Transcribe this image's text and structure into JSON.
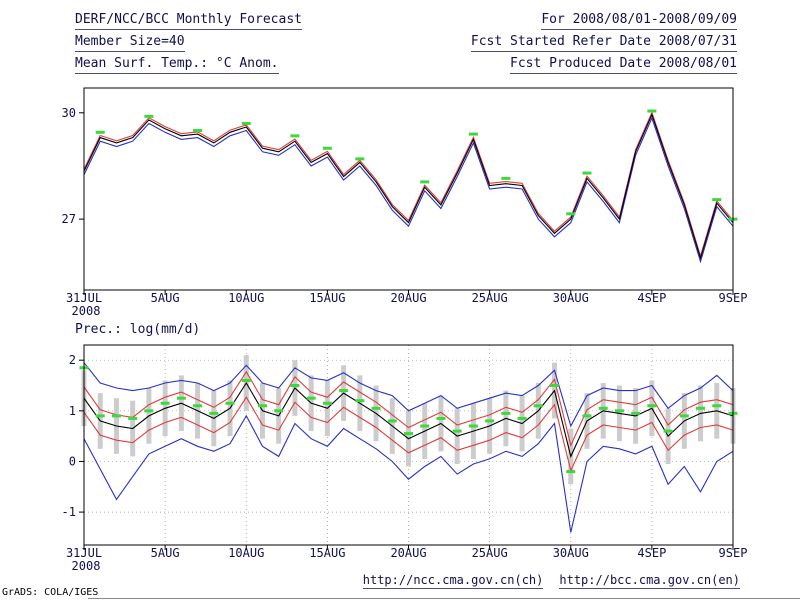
{
  "header": {
    "left": [
      "DERF/NCC/BCC Monthly Forecast",
      "Member Size=40",
      "Mean Surf. Temp.: °C Anom."
    ],
    "right": [
      "For 2008/08/01-2008/09/09",
      "Fcst Started Refer Date 2008/07/31",
      "Fcst Produced Date 2008/08/01"
    ]
  },
  "footer": {
    "url_ch": "http://ncc.cma.gov.cn(ch)",
    "url_en": "http://bcc.cma.gov.cn(en)",
    "credit": "GrADS: COLA/IGES"
  },
  "colors": {
    "text": "#101050",
    "grid": "#9a9a9a",
    "frame": "#000000",
    "line_black": "#000000",
    "line_red": "#e03c3c",
    "line_blue": "#2830c8",
    "marker_green": "#3cd83c",
    "bar_gray": "#cccccc"
  },
  "chart_data": [
    {
      "id": "temp",
      "type": "line",
      "title": "Mean Surf. Temp.: °C Anom.",
      "ylim": [
        25.0,
        30.7
      ],
      "y_ticks": [
        27,
        30
      ],
      "x_tick_indices": [
        0,
        5,
        10,
        15,
        20,
        25,
        30,
        35,
        40
      ],
      "x_ticklabels": [
        "31JUL",
        "5AUG",
        "10AUG",
        "15AUG",
        "20AUG",
        "25AUG",
        "30AUG",
        "4SEP",
        "9SEP"
      ],
      "x_sub_label": "2008",
      "n_points": 41,
      "grid": false,
      "series": [
        {
          "name": "model-blue",
          "color": "#2830c8",
          "values": [
            28.25,
            29.2,
            29.05,
            29.2,
            29.7,
            29.45,
            29.25,
            29.3,
            29.05,
            29.35,
            29.5,
            28.9,
            28.8,
            29.1,
            28.5,
            28.75,
            28.1,
            28.5,
            27.95,
            27.25,
            26.8,
            27.8,
            27.3,
            28.2,
            29.15,
            27.85,
            27.9,
            27.85,
            27.0,
            26.5,
            26.9,
            28.05,
            27.5,
            26.9,
            28.8,
            29.85,
            28.5,
            27.3,
            25.8,
            27.35,
            26.8
          ]
        },
        {
          "name": "model-red",
          "color": "#e03c3c",
          "values": [
            28.41,
            29.36,
            29.21,
            29.36,
            29.86,
            29.61,
            29.41,
            29.46,
            29.21,
            29.51,
            29.66,
            29.06,
            28.96,
            29.26,
            28.66,
            28.91,
            28.26,
            28.66,
            28.11,
            27.41,
            26.96,
            27.96,
            27.46,
            28.36,
            29.31,
            28.01,
            28.06,
            28.01,
            27.16,
            26.66,
            27.06,
            28.21,
            27.66,
            27.06,
            28.96,
            30.01,
            28.66,
            27.46,
            25.96,
            27.51,
            26.96
          ]
        },
        {
          "name": "ensemble-mean-black",
          "color": "#000000",
          "values": [
            28.35,
            29.3,
            29.15,
            29.3,
            29.8,
            29.55,
            29.35,
            29.4,
            29.15,
            29.45,
            29.6,
            29.0,
            28.9,
            29.2,
            28.6,
            28.85,
            28.2,
            28.6,
            28.05,
            27.35,
            26.9,
            27.9,
            27.4,
            28.3,
            29.25,
            27.95,
            28.0,
            27.95,
            27.1,
            26.6,
            27.0,
            28.15,
            27.6,
            27.0,
            28.9,
            29.95,
            28.6,
            27.4,
            25.9,
            27.45,
            26.9
          ]
        }
      ],
      "markers": {
        "name": "obs-green",
        "color": "#3cd83c",
        "values": [
          null,
          29.45,
          null,
          null,
          29.9,
          null,
          null,
          29.5,
          null,
          null,
          29.7,
          null,
          null,
          29.35,
          null,
          29.0,
          null,
          28.7,
          null,
          null,
          null,
          28.05,
          null,
          null,
          29.4,
          null,
          28.15,
          null,
          null,
          null,
          27.15,
          28.3,
          null,
          null,
          null,
          30.05,
          null,
          null,
          null,
          27.55,
          27.0
        ]
      }
    },
    {
      "id": "prec",
      "type": "line",
      "title": "Prec.: log(mm/d)",
      "ylim": [
        -1.65,
        2.3
      ],
      "y_ticks": [
        -1,
        0,
        1,
        2
      ],
      "x_tick_indices": [
        0,
        5,
        10,
        15,
        20,
        25,
        30,
        35,
        40
      ],
      "x_ticklabels": [
        "31JUL",
        "5AUG",
        "10AUG",
        "15AUG",
        "20AUG",
        "25AUG",
        "30AUG",
        "4SEP",
        "9SEP"
      ],
      "x_sub_label": "2008",
      "n_points": 41,
      "grid": true,
      "bars": {
        "around": "ensemble-mean-black",
        "halfspan": 0.55,
        "color": "#cccccc"
      },
      "series": [
        {
          "name": "envelope-max-blue",
          "color": "#2830c8",
          "values": [
            1.95,
            1.55,
            1.45,
            1.4,
            1.45,
            1.55,
            1.6,
            1.55,
            1.4,
            1.55,
            1.9,
            1.55,
            1.45,
            1.85,
            1.65,
            1.6,
            1.75,
            1.55,
            1.4,
            1.3,
            1.0,
            1.15,
            1.3,
            1.05,
            1.15,
            1.25,
            1.35,
            1.3,
            1.5,
            1.8,
            0.7,
            1.3,
            1.45,
            1.4,
            1.4,
            1.5,
            1.05,
            1.3,
            1.45,
            1.7,
            1.4
          ]
        },
        {
          "name": "envelope-min-blue",
          "color": "#2830c8",
          "values": [
            0.45,
            -0.15,
            -0.75,
            -0.3,
            0.15,
            0.3,
            0.45,
            0.3,
            0.2,
            0.35,
            0.9,
            0.3,
            0.1,
            0.75,
            0.45,
            0.3,
            0.65,
            0.45,
            0.25,
            0.0,
            -0.35,
            -0.1,
            0.1,
            -0.25,
            -0.05,
            0.05,
            0.2,
            0.1,
            0.35,
            0.75,
            -1.4,
            0.0,
            0.3,
            0.25,
            0.15,
            0.3,
            -0.45,
            -0.1,
            -0.6,
            0.0,
            0.2
          ]
        },
        {
          "name": "quartile-upper-red",
          "color": "#e03c3c",
          "values": [
            1.47,
            1.02,
            0.92,
            0.87,
            1.12,
            1.27,
            1.37,
            1.22,
            1.07,
            1.27,
            1.77,
            1.22,
            1.12,
            1.67,
            1.37,
            1.27,
            1.57,
            1.37,
            1.17,
            0.92,
            0.67,
            0.82,
            0.97,
            0.72,
            0.82,
            0.92,
            1.07,
            0.97,
            1.22,
            1.62,
            0.32,
            1.02,
            1.22,
            1.17,
            1.12,
            1.27,
            0.72,
            1.02,
            1.17,
            1.22,
            1.12
          ]
        },
        {
          "name": "quartile-lower-red",
          "color": "#e03c3c",
          "values": [
            0.97,
            0.52,
            0.42,
            0.37,
            0.62,
            0.77,
            0.87,
            0.72,
            0.57,
            0.77,
            1.27,
            0.72,
            0.62,
            1.17,
            0.87,
            0.77,
            1.07,
            0.87,
            0.67,
            0.42,
            0.17,
            0.32,
            0.47,
            0.22,
            0.32,
            0.42,
            0.57,
            0.47,
            0.72,
            1.12,
            -0.18,
            0.52,
            0.72,
            0.67,
            0.62,
            0.77,
            0.22,
            0.52,
            0.67,
            0.72,
            0.62
          ]
        },
        {
          "name": "ensemble-mean-black",
          "color": "#000000",
          "values": [
            1.25,
            0.8,
            0.7,
            0.65,
            0.9,
            1.05,
            1.15,
            1.0,
            0.85,
            1.05,
            1.55,
            1.0,
            0.9,
            1.45,
            1.15,
            1.05,
            1.35,
            1.15,
            0.95,
            0.7,
            0.45,
            0.6,
            0.75,
            0.5,
            0.6,
            0.7,
            0.85,
            0.75,
            1.0,
            1.4,
            0.1,
            0.8,
            1.0,
            0.95,
            0.9,
            1.05,
            0.5,
            0.8,
            0.95,
            1.0,
            0.9
          ]
        }
      ],
      "markers": {
        "name": "obs-green",
        "color": "#3cd83c",
        "values": [
          1.85,
          0.9,
          0.9,
          0.85,
          1.0,
          1.15,
          1.25,
          1.1,
          0.95,
          1.15,
          1.6,
          1.1,
          1.0,
          1.5,
          1.25,
          1.15,
          1.4,
          1.2,
          1.05,
          0.8,
          0.55,
          0.7,
          0.85,
          0.6,
          0.7,
          0.8,
          0.95,
          0.85,
          1.1,
          1.5,
          -0.2,
          0.9,
          1.05,
          1.0,
          0.95,
          1.1,
          0.6,
          0.9,
          1.05,
          1.1,
          0.95
        ]
      }
    }
  ]
}
